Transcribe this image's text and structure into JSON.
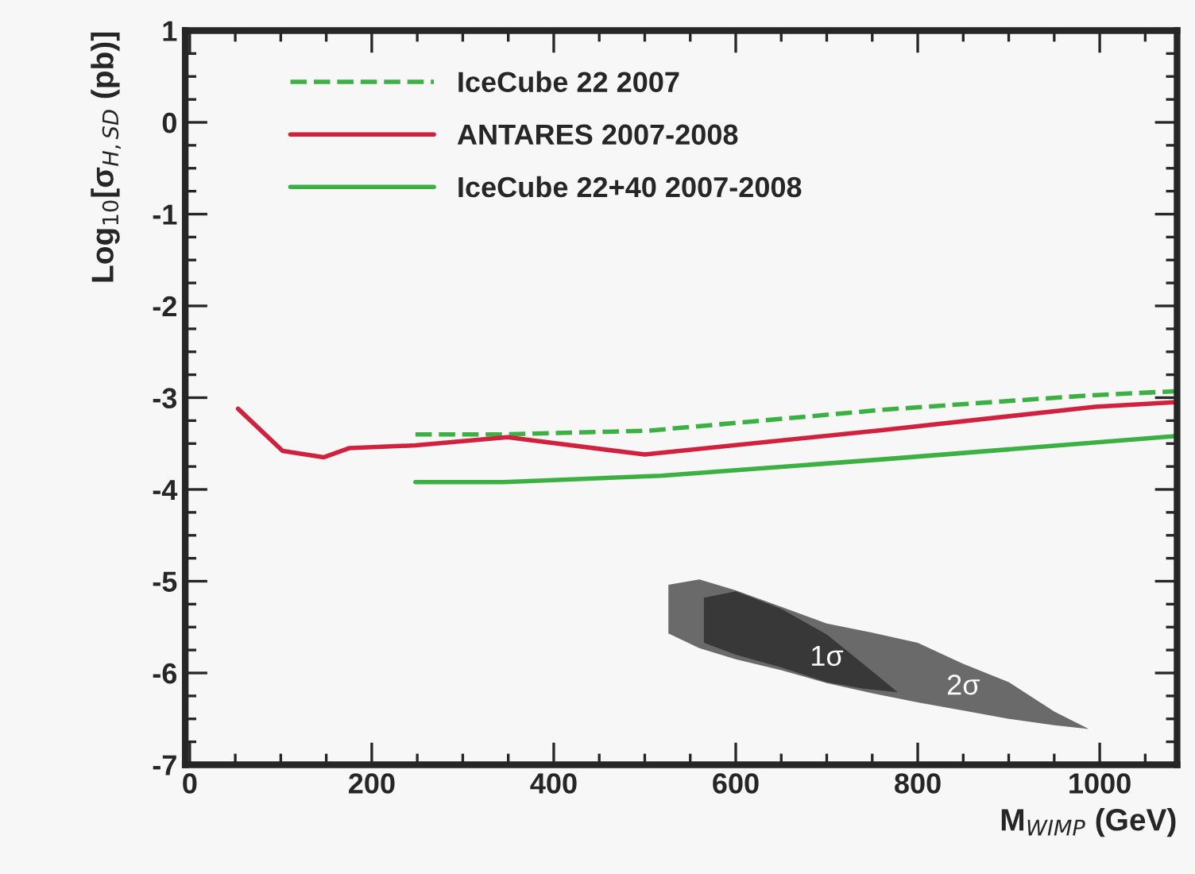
{
  "chart_data": {
    "type": "line",
    "xlabel": "M$_{WIMP}$ (GeV)",
    "ylabel": "Log$_{10}$[σ$_{H,SD}$ (pb)]",
    "xlim": [
      -5,
      1085
    ],
    "ylim": [
      -7,
      1
    ],
    "xticks": [
      0,
      200,
      400,
      600,
      800,
      1000
    ],
    "yticks": [
      -7,
      -6,
      -5,
      -4,
      -3,
      -2,
      -1,
      0,
      1
    ],
    "grid": false,
    "legend": "top left",
    "series": [
      {
        "name": "IceCube 22 2007",
        "line_style": "dashed",
        "color": "#3cb043",
        "x": [
          248,
          345,
          504,
          764,
          981,
          1082
        ],
        "values": [
          -3.4,
          -3.4,
          -3.36,
          -3.13,
          -2.98,
          -2.93
        ]
      },
      {
        "name": "ANTARES 2007-2008",
        "line_style": "solid",
        "color": "#d0213e",
        "x": [
          53,
          102,
          147,
          175,
          248,
          349,
          500,
          764,
          995,
          1082
        ],
        "values": [
          -3.12,
          -3.58,
          -3.65,
          -3.55,
          -3.52,
          -3.43,
          -3.62,
          -3.35,
          -3.1,
          -3.05
        ]
      },
      {
        "name": "IceCube 22+40 2007-2008",
        "line_style": "solid",
        "color": "#3cb043",
        "x": [
          248,
          345,
          518,
          764,
          1082
        ],
        "values": [
          -3.92,
          -3.92,
          -3.85,
          -3.67,
          -3.42
        ]
      },
      {
        "name": "2σ",
        "type": "area",
        "color": "#6a6a6a",
        "x": [
          526,
          560,
          600,
          650,
          700,
          750,
          800,
          850,
          900,
          950,
          988,
          950,
          900,
          850,
          800,
          750,
          700,
          650,
          600,
          560,
          526
        ],
        "values": [
          -5.04,
          -4.98,
          -5.1,
          -5.28,
          -5.46,
          -5.56,
          -5.67,
          -5.9,
          -6.1,
          -6.42,
          -6.61,
          -6.57,
          -6.5,
          -6.41,
          -6.32,
          -6.22,
          -6.11,
          -5.97,
          -5.85,
          -5.73,
          -5.57
        ]
      },
      {
        "name": "1σ",
        "type": "area",
        "color": "#383838",
        "x": [
          565,
          600,
          650,
          700,
          740,
          778,
          740,
          700,
          650,
          600,
          565
        ],
        "values": [
          -5.18,
          -5.11,
          -5.3,
          -5.58,
          -5.9,
          -6.21,
          -6.17,
          -6.1,
          -5.94,
          -5.8,
          -5.67
        ]
      }
    ]
  }
}
